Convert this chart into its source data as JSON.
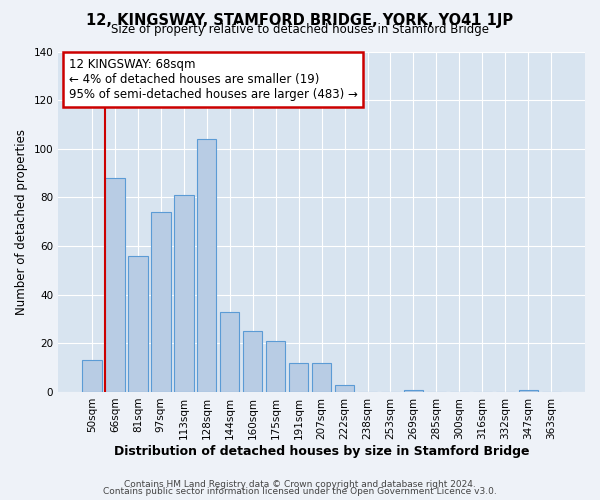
{
  "title": "12, KINGSWAY, STAMFORD BRIDGE, YORK, YO41 1JP",
  "subtitle": "Size of property relative to detached houses in Stamford Bridge",
  "xlabel": "Distribution of detached houses by size in Stamford Bridge",
  "ylabel": "Number of detached properties",
  "bar_labels": [
    "50sqm",
    "66sqm",
    "81sqm",
    "97sqm",
    "113sqm",
    "128sqm",
    "144sqm",
    "160sqm",
    "175sqm",
    "191sqm",
    "207sqm",
    "222sqm",
    "238sqm",
    "253sqm",
    "269sqm",
    "285sqm",
    "300sqm",
    "316sqm",
    "332sqm",
    "347sqm",
    "363sqm"
  ],
  "bar_heights": [
    13,
    88,
    56,
    74,
    81,
    104,
    33,
    25,
    21,
    12,
    12,
    3,
    0,
    0,
    1,
    0,
    0,
    0,
    0,
    1,
    0
  ],
  "bar_color": "#b8cce4",
  "bar_edge_color": "#5b9bd5",
  "ylim": [
    0,
    140
  ],
  "yticks": [
    0,
    20,
    40,
    60,
    80,
    100,
    120,
    140
  ],
  "annotation_title": "12 KINGSWAY: 68sqm",
  "annotation_line1": "← 4% of detached houses are smaller (19)",
  "annotation_line2": "95% of semi-detached houses are larger (483) →",
  "annotation_box_color": "#ffffff",
  "annotation_box_edge_color": "#cc0000",
  "red_line_color": "#cc0000",
  "footer1": "Contains HM Land Registry data © Crown copyright and database right 2024.",
  "footer2": "Contains public sector information licensed under the Open Government Licence v3.0.",
  "background_color": "#eef2f8",
  "plot_bg_color": "#d8e4f0"
}
